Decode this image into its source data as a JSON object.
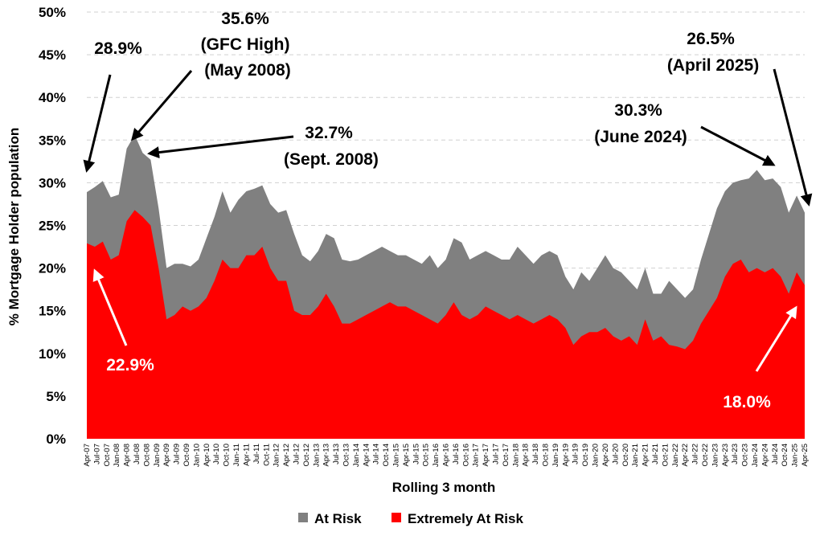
{
  "chart_data": {
    "type": "area",
    "title": "",
    "xlabel": "Rolling 3 month",
    "ylabel": "% Mortgage Holder population",
    "ylim": [
      0,
      50
    ],
    "y_ticks": [
      "0%",
      "5%",
      "10%",
      "15%",
      "20%",
      "25%",
      "30%",
      "35%",
      "40%",
      "45%",
      "50%"
    ],
    "grid": "horizontal dashed",
    "legend_position": "bottom",
    "x_tick_labels": [
      "Apr-07",
      "Jul-07",
      "Oct-07",
      "Jan-08",
      "Apr-08",
      "Jul-08",
      "Oct-08",
      "Jan-09",
      "Apr-09",
      "Jul-09",
      "Oct-09",
      "Jan-10",
      "Apr-10",
      "Jul-10",
      "Oct-10",
      "Jan-11",
      "Apr-11",
      "Jul-11",
      "Oct-11",
      "Jan-12",
      "Apr-12",
      "Jul-12",
      "Oct-12",
      "Jan-13",
      "Apr-13",
      "Jul-13",
      "Oct-13",
      "Jan-14",
      "Apr-14",
      "Jul-14",
      "Oct-14",
      "Jan-15",
      "Apr-15",
      "Jul-15",
      "Oct-15",
      "Jan-16",
      "Apr-16",
      "Jul-16",
      "Oct-16",
      "Jan-17",
      "Apr-17",
      "Jul-17",
      "Oct-17",
      "Jan-18",
      "Apr-18",
      "Jul-18",
      "Oct-18",
      "Jan-19",
      "Apr-19",
      "Jul-19",
      "Oct-19",
      "Jan-20",
      "Apr-20",
      "Jul-20",
      "Oct-20",
      "Jan-21",
      "Apr-21",
      "Jul-21",
      "Oct-21",
      "Jan-22",
      "Apr-22",
      "Jul-22",
      "Oct-22",
      "Jan-23",
      "Apr-23",
      "Jul-23",
      "Oct-23",
      "Jan-24",
      "Apr-24",
      "Jul-24",
      "Oct-24",
      "Jan-25",
      "Apr-25"
    ],
    "series": [
      {
        "name": "At Risk",
        "color": "#808080",
        "values": [
          28.9,
          29.5,
          30.2,
          28.3,
          28.6,
          34.0,
          35.6,
          33.5,
          32.7,
          27.0,
          20.0,
          20.5,
          20.5,
          20.2,
          21.0,
          23.5,
          26.0,
          29.0,
          26.5,
          28.0,
          29.0,
          29.3,
          29.7,
          27.5,
          26.5,
          26.8,
          24.0,
          21.5,
          20.8,
          22.0,
          24.0,
          23.5,
          21.0,
          20.8,
          21.0,
          21.5,
          22.0,
          22.5,
          22.0,
          21.5,
          21.5,
          21.0,
          20.5,
          21.5,
          20.0,
          21.0,
          23.5,
          23.0,
          21.0,
          21.5,
          22.0,
          21.5,
          21.0,
          21.0,
          22.5,
          21.5,
          20.5,
          21.5,
          22.0,
          21.5,
          19.0,
          17.5,
          19.5,
          18.5,
          20.0,
          21.5,
          20.0,
          19.5,
          18.5,
          17.5,
          20.0,
          17.0,
          17.0,
          18.5,
          17.5,
          16.5,
          17.5,
          21.0,
          24.0,
          27.0,
          29.0,
          30.0,
          30.3,
          30.5,
          31.5,
          30.3,
          30.5,
          29.5,
          26.5,
          28.5,
          26.5
        ]
      },
      {
        "name": "Extremely At Risk",
        "color": "#ff0000",
        "values": [
          22.9,
          22.5,
          23.1,
          21.0,
          21.5,
          25.5,
          26.8,
          26.0,
          25.0,
          20.0,
          14.0,
          14.5,
          15.5,
          15.0,
          15.5,
          16.5,
          18.5,
          21.0,
          20.0,
          20.0,
          21.5,
          21.5,
          22.5,
          20.0,
          18.5,
          18.5,
          15.0,
          14.5,
          14.5,
          15.5,
          17.0,
          15.5,
          13.5,
          13.5,
          14.0,
          14.5,
          15.0,
          15.5,
          16.0,
          15.5,
          15.5,
          15.0,
          14.5,
          14.0,
          13.5,
          14.5,
          16.0,
          14.5,
          14.0,
          14.5,
          15.5,
          15.0,
          14.5,
          14.0,
          14.5,
          14.0,
          13.5,
          14.0,
          14.5,
          14.0,
          13.0,
          11.0,
          12.0,
          12.5,
          12.5,
          13.0,
          12.0,
          11.5,
          12.0,
          11.0,
          14.0,
          11.5,
          12.0,
          11.0,
          10.8,
          10.5,
          11.5,
          13.5,
          15.0,
          16.5,
          19.0,
          20.5,
          21.0,
          19.5,
          20.0,
          19.5,
          20.0,
          19.0,
          17.0,
          19.5,
          18.0
        ]
      }
    ],
    "annotations": [
      {
        "lines": [
          "28.9%"
        ],
        "color": "#000000"
      },
      {
        "lines": [
          "35.6%",
          "(GFC High)",
          "(May 2008)"
        ],
        "color": "#000000"
      },
      {
        "lines": [
          "32.7%",
          "(Sept. 2008)"
        ],
        "color": "#000000"
      },
      {
        "lines": [
          "30.3%",
          "(June 2024)"
        ],
        "color": "#000000"
      },
      {
        "lines": [
          "26.5%",
          "(April 2025)"
        ],
        "color": "#000000"
      },
      {
        "lines": [
          "22.9%"
        ],
        "color": "#ffffff"
      },
      {
        "lines": [
          "18.0%"
        ],
        "color": "#ffffff"
      }
    ],
    "legend": [
      "At Risk",
      "Extremely At Risk"
    ]
  }
}
